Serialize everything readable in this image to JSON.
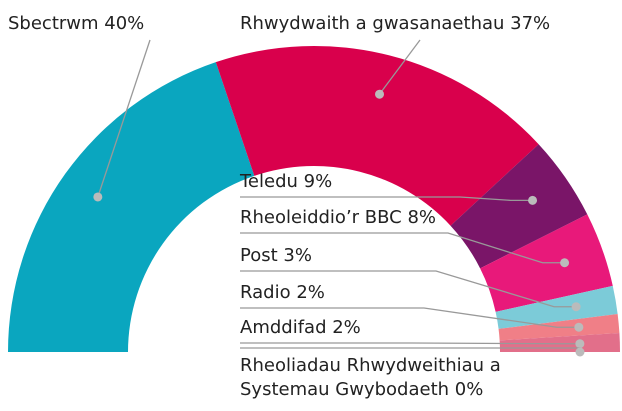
{
  "chart_data": {
    "type": "semi-donut",
    "categories": [
      "Sbectrwm",
      "Rhwydwaith a gwasanaethau",
      "Teledu",
      "Rheoleiddio’r BBC",
      "Post",
      "Radio",
      "Amddifad",
      "Rheoliadau Rhwydweithiau a Systemau Gwybodaeth"
    ],
    "values": [
      40,
      37,
      9,
      8,
      3,
      2,
      2,
      0
    ],
    "value_labels": [
      "40%",
      "37%",
      "9%",
      "8%",
      "3%",
      "2%",
      "2%",
      "0%"
    ],
    "colors": [
      "#0aa6bf",
      "#d9004c",
      "#7a1568",
      "#e8197a",
      "#7ccbd8",
      "#f07f87",
      "#e26f8a",
      "#a0609f"
    ]
  }
}
